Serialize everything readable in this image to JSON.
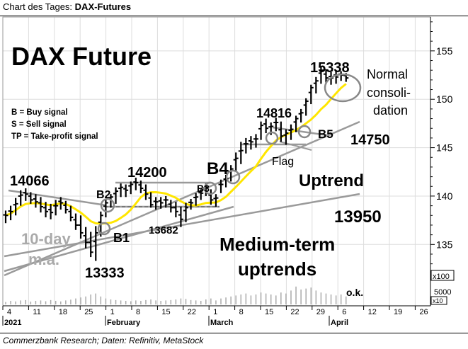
{
  "header": {
    "prefix": "Chart des Tages:",
    "title": "DAX-Futures"
  },
  "footer": {
    "source": "Commerzbank Research; Daten: Refinitiv, MetaStock"
  },
  "chart_data": {
    "type": "candlestick",
    "title": "DAX Future",
    "price_axis": {
      "ticks": [
        135,
        140,
        145,
        150,
        155
      ],
      "range": [
        131,
        158.5
      ],
      "unit_label": "x100",
      "position": "right"
    },
    "volume_axis": {
      "ticks": [
        "5000"
      ],
      "unit_label": "x10"
    },
    "date_axis": {
      "day_ticks": [
        "4",
        "11",
        "18",
        "25",
        "1",
        "8",
        "15",
        "22",
        "1",
        "8",
        "15",
        "22",
        "29",
        "6",
        "12",
        "19",
        "26"
      ],
      "month_labels": [
        "2021",
        "February",
        "March",
        "April"
      ]
    },
    "legend": {
      "items": [
        "B = Buy signal",
        "S = Sell signal",
        "TP = Take-profit signal"
      ],
      "placement": "left"
    },
    "moving_average": {
      "label": "10-day m.a.",
      "color": "#ffe600"
    },
    "annotations": {
      "level_14066": "14066",
      "level_13333": "13333",
      "level_14200": "14200",
      "level_13682": "13682",
      "level_14816": "14816",
      "level_15338": "15338",
      "level_14750": "14750",
      "level_13950": "13950",
      "b1": "B1",
      "b2": "B2",
      "b3": "B3",
      "b4": "B4",
      "b5": "B5",
      "flag": "Flag",
      "uptrend": "Uptrend",
      "medium_term": "Medium-term",
      "uptrends": "uptrends",
      "normal": "Normal",
      "consoli": "consoli-",
      "dation": "dation",
      "ok": "o.k."
    },
    "colors": {
      "bars": "#000000",
      "trendlines": "#9a9a9a",
      "ma": "#ffe600",
      "volume": "#aaaaaa"
    },
    "bars": [
      [
        138.5,
        137.2,
        138.0
      ],
      [
        139.0,
        137.5,
        138.4
      ],
      [
        139.8,
        138.0,
        139.2
      ],
      [
        140.6,
        139.0,
        140.1
      ],
      [
        140.8,
        139.5,
        140.2
      ],
      [
        140.4,
        139.2,
        139.6
      ],
      [
        140.2,
        138.8,
        139.4
      ],
      [
        139.9,
        138.3,
        138.9
      ],
      [
        139.4,
        137.8,
        138.4
      ],
      [
        139.2,
        137.6,
        138.3
      ],
      [
        139.6,
        138.0,
        139.0
      ],
      [
        139.9,
        138.6,
        139.3
      ],
      [
        139.5,
        138.2,
        138.6
      ],
      [
        139.0,
        137.4,
        137.8
      ],
      [
        138.2,
        136.5,
        137.0
      ],
      [
        138.0,
        135.6,
        136.2
      ],
      [
        136.8,
        134.6,
        135.2
      ],
      [
        136.3,
        133.7,
        134.2
      ],
      [
        136.9,
        133.3,
        136.2
      ],
      [
        138.4,
        135.8,
        138.0
      ],
      [
        139.7,
        137.8,
        139.3
      ],
      [
        140.2,
        138.8,
        139.9
      ],
      [
        140.9,
        139.2,
        140.5
      ],
      [
        141.3,
        139.9,
        140.9
      ],
      [
        141.2,
        139.9,
        140.6
      ],
      [
        141.5,
        140.2,
        141.2
      ],
      [
        141.9,
        140.6,
        141.4
      ],
      [
        141.6,
        140.3,
        140.8
      ],
      [
        141.2,
        139.6,
        140.2
      ],
      [
        140.4,
        138.8,
        139.1
      ],
      [
        139.9,
        138.6,
        139.4
      ],
      [
        139.9,
        138.7,
        139.3
      ],
      [
        140.0,
        138.8,
        139.6
      ],
      [
        139.6,
        138.3,
        138.8
      ],
      [
        139.4,
        137.8,
        138.4
      ],
      [
        138.9,
        136.8,
        137.6
      ],
      [
        139.3,
        137.3,
        138.8
      ],
      [
        139.7,
        138.6,
        139.3
      ],
      [
        140.3,
        139.0,
        139.9
      ],
      [
        140.7,
        139.6,
        140.3
      ],
      [
        141.3,
        140.0,
        140.9
      ],
      [
        140.7,
        139.1,
        139.6
      ],
      [
        140.2,
        138.9,
        139.8
      ],
      [
        141.7,
        140.3,
        141.2
      ],
      [
        142.2,
        140.9,
        141.8
      ],
      [
        143.2,
        141.5,
        142.8
      ],
      [
        144.5,
        142.6,
        143.9
      ],
      [
        145.6,
        143.3,
        144.7
      ],
      [
        146.0,
        144.4,
        145.4
      ],
      [
        146.2,
        144.8,
        145.6
      ],
      [
        146.4,
        145.0,
        145.9
      ],
      [
        147.7,
        145.8,
        147.3
      ],
      [
        148.0,
        146.5,
        147.0
      ],
      [
        147.6,
        146.3,
        147.2
      ],
      [
        148.1,
        146.7,
        147.6
      ],
      [
        147.7,
        145.6,
        146.2
      ],
      [
        146.9,
        145.3,
        146.5
      ],
      [
        147.4,
        145.8,
        146.9
      ],
      [
        148.3,
        146.6,
        148.0
      ],
      [
        149.0,
        147.6,
        148.6
      ],
      [
        150.1,
        148.3,
        149.8
      ],
      [
        151.5,
        149.5,
        151.2
      ],
      [
        152.3,
        150.6,
        151.9
      ],
      [
        153.4,
        151.6,
        153.0
      ],
      [
        153.1,
        151.7,
        152.2
      ],
      [
        152.8,
        151.5,
        152.2
      ],
      [
        153.0,
        151.6,
        152.3
      ],
      [
        152.9,
        151.9,
        152.5
      ],
      [
        152.7,
        151.8,
        152.2
      ]
    ],
    "volume": [
      0.12,
      0.18,
      0.15,
      0.2,
      0.22,
      0.14,
      0.18,
      0.2,
      0.16,
      0.22,
      0.18,
      0.15,
      0.2,
      0.24,
      0.3,
      0.35,
      0.4,
      0.5,
      0.55,
      0.4,
      0.3,
      0.25,
      0.22,
      0.2,
      0.18,
      0.16,
      0.2,
      0.18,
      0.22,
      0.25,
      0.2,
      0.18,
      0.2,
      0.22,
      0.25,
      0.3,
      0.28,
      0.22,
      0.2,
      0.18,
      0.25,
      0.3,
      0.2,
      0.3,
      0.35,
      0.4,
      0.45,
      0.5,
      0.55,
      0.45,
      0.5,
      0.6,
      0.55,
      0.5,
      0.45,
      0.6,
      0.55,
      0.7,
      0.9,
      0.75,
      0.8,
      0.85,
      0.7,
      0.6,
      0.55,
      0.5,
      0.45,
      0.5,
      0.4
    ]
  }
}
